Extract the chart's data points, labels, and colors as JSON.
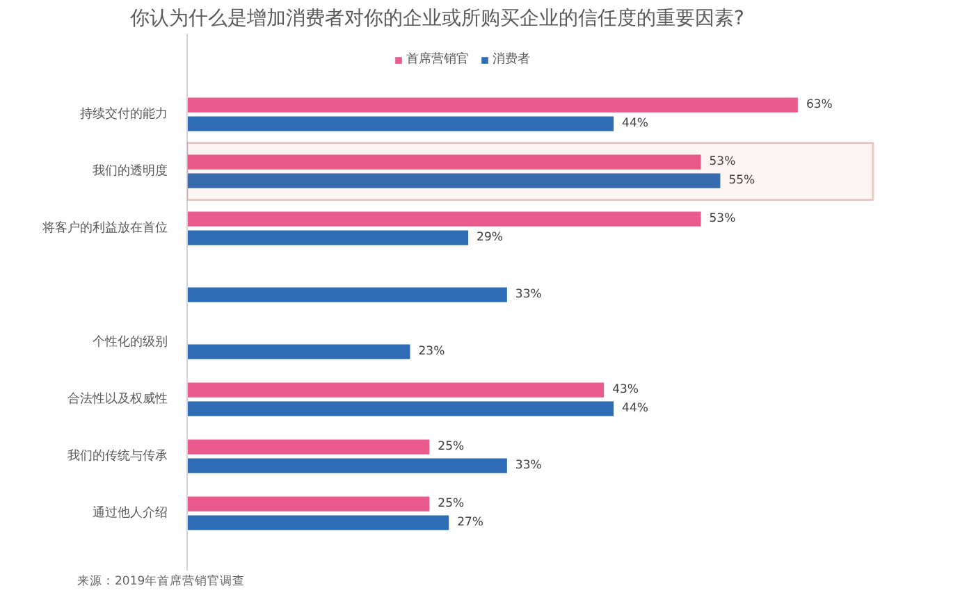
{
  "chart_data": {
    "type": "bar",
    "orientation": "horizontal",
    "title": "你认为什么是增加消费者对你的企业或所购买企业的信任度的重要因素?",
    "categories": [
      "持续交付的能力",
      "我们的透明度",
      "将客户的利益放在首位",
      null,
      "个性化的级别",
      "合法性以及权威性",
      "我们的传统与传承",
      "通过他人介绍"
    ],
    "series": [
      {
        "name": "首席营销官",
        "color": "#e95a8d",
        "values": [
          63,
          53,
          53,
          null,
          null,
          43,
          25,
          25
        ],
        "value_labels": [
          "63%",
          "53%",
          "53%",
          null,
          null,
          "43%",
          "25%",
          "25%"
        ]
      },
      {
        "name": "消费者",
        "color": "#2e6db5",
        "values": [
          44,
          55,
          29,
          33,
          23,
          44,
          33,
          27
        ],
        "value_labels": [
          "44%",
          "55%",
          "29%",
          "33%",
          "23%",
          "44%",
          "33%",
          "27%"
        ]
      }
    ],
    "legend": "top",
    "tick_labels": "y",
    "bands": [
      {
        "axis": "y",
        "from": "我们的透明度",
        "to": "我们的透明度",
        "color": "#c4574a"
      }
    ],
    "annotations": [
      "来源：2019年首席营销官调查"
    ]
  }
}
